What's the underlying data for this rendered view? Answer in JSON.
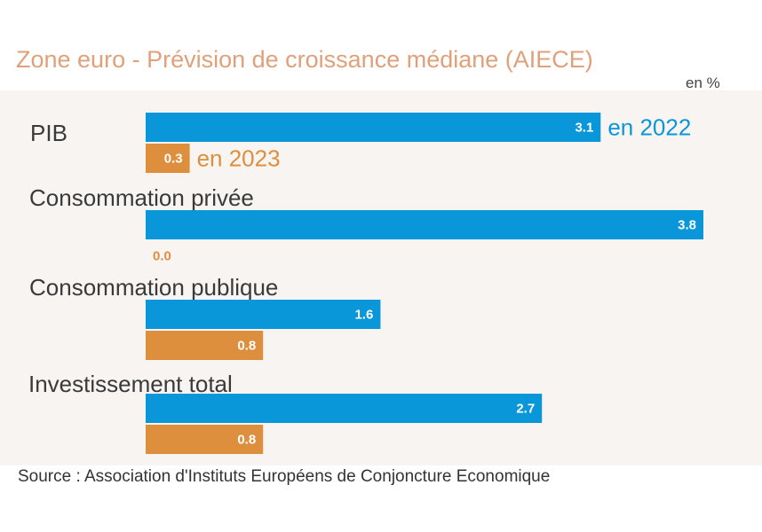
{
  "header": {
    "title": "Zone euro - Prévision de croissance médiane (AIECE)",
    "unit": "en %"
  },
  "footer": {
    "source": "Source : Association d'Instituts Européens de Conjoncture Economique"
  },
  "colors": {
    "series_2022": "#0a97d9",
    "series_2023": "#dd8f3d",
    "title": "#e0a07a",
    "panel_bg": "#f8f4f1"
  },
  "chart_data": {
    "type": "bar",
    "orientation": "horizontal",
    "title": "Zone euro - Prévision de croissance médiane (AIECE)",
    "unit": "en %",
    "categories": [
      "PIB",
      "Consommation privée",
      "Consommation publique",
      "Investissement total"
    ],
    "series": [
      {
        "name": "en 2022",
        "values": [
          3.1,
          3.8,
          1.6,
          2.7
        ]
      },
      {
        "name": "en 2023",
        "values": [
          0.3,
          0.0,
          0.8,
          0.8
        ]
      }
    ],
    "value_labels": [
      [
        "3.1",
        "3.8",
        "1.6",
        "2.7"
      ],
      [
        "0.3",
        "0.0",
        "0.8",
        "0.8"
      ]
    ],
    "xlim": [
      0,
      3.8
    ],
    "grid": false,
    "legend": "inline, next to first category bars"
  }
}
